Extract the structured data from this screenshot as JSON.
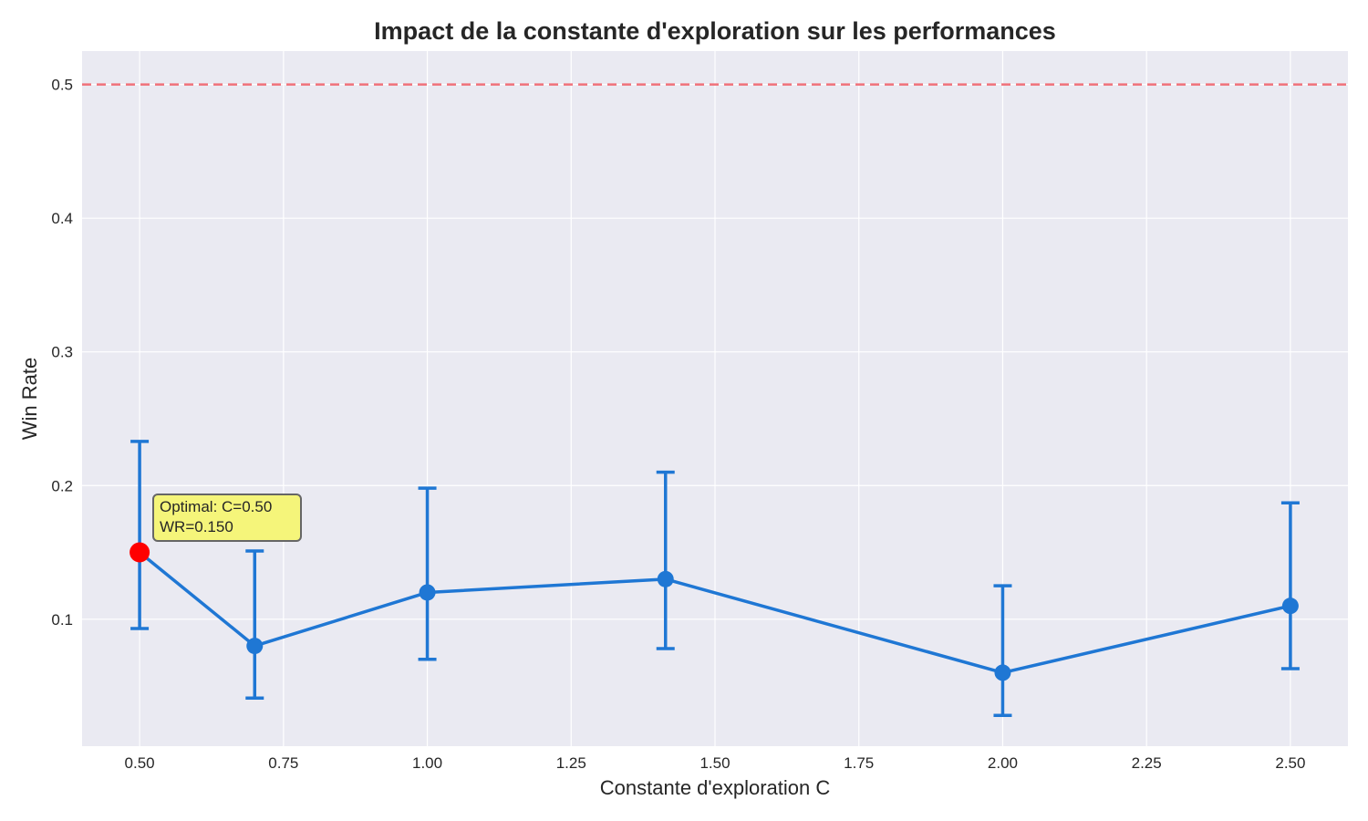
{
  "chart_data": {
    "type": "line",
    "title": "Impact de la constante d'exploration sur les performances",
    "xlabel": "Constante d'exploration C",
    "ylabel": "Win Rate",
    "xlim": [
      0.4,
      2.6
    ],
    "ylim": [
      0.005,
      0.525
    ],
    "xticks": [
      0.5,
      0.75,
      1.0,
      1.25,
      1.5,
      1.75,
      2.0,
      2.25,
      2.5
    ],
    "xtick_labels": [
      "0.50",
      "0.75",
      "1.00",
      "1.25",
      "1.50",
      "1.75",
      "2.00",
      "2.25",
      "2.50"
    ],
    "yticks": [
      0.1,
      0.2,
      0.3,
      0.4,
      0.5
    ],
    "ytick_labels": [
      "0.1",
      "0.2",
      "0.3",
      "0.4",
      "0.5"
    ],
    "grid": true,
    "series": [
      {
        "x": [
          0.5,
          0.7,
          1.0,
          1.414,
          2.0,
          2.5
        ],
        "y": [
          0.15,
          0.08,
          0.12,
          0.13,
          0.06,
          0.11
        ],
        "err_low": [
          0.093,
          0.041,
          0.07,
          0.078,
          0.028,
          0.063
        ],
        "err_high": [
          0.233,
          0.151,
          0.198,
          0.21,
          0.125,
          0.187
        ],
        "color": "#1f77d4"
      }
    ],
    "reference_line": {
      "y": 0.5,
      "color": "#f0717a",
      "style": "dashed"
    },
    "highlight": {
      "x": 0.5,
      "y": 0.15,
      "color": "#ff0000"
    },
    "annotation": {
      "lines": [
        "Optimal: C=0.50",
        "WR=0.150"
      ],
      "box_color": "#f5f57a"
    },
    "colors": {
      "plot_background": "#eaeaf2",
      "grid": "#ffffff"
    }
  }
}
